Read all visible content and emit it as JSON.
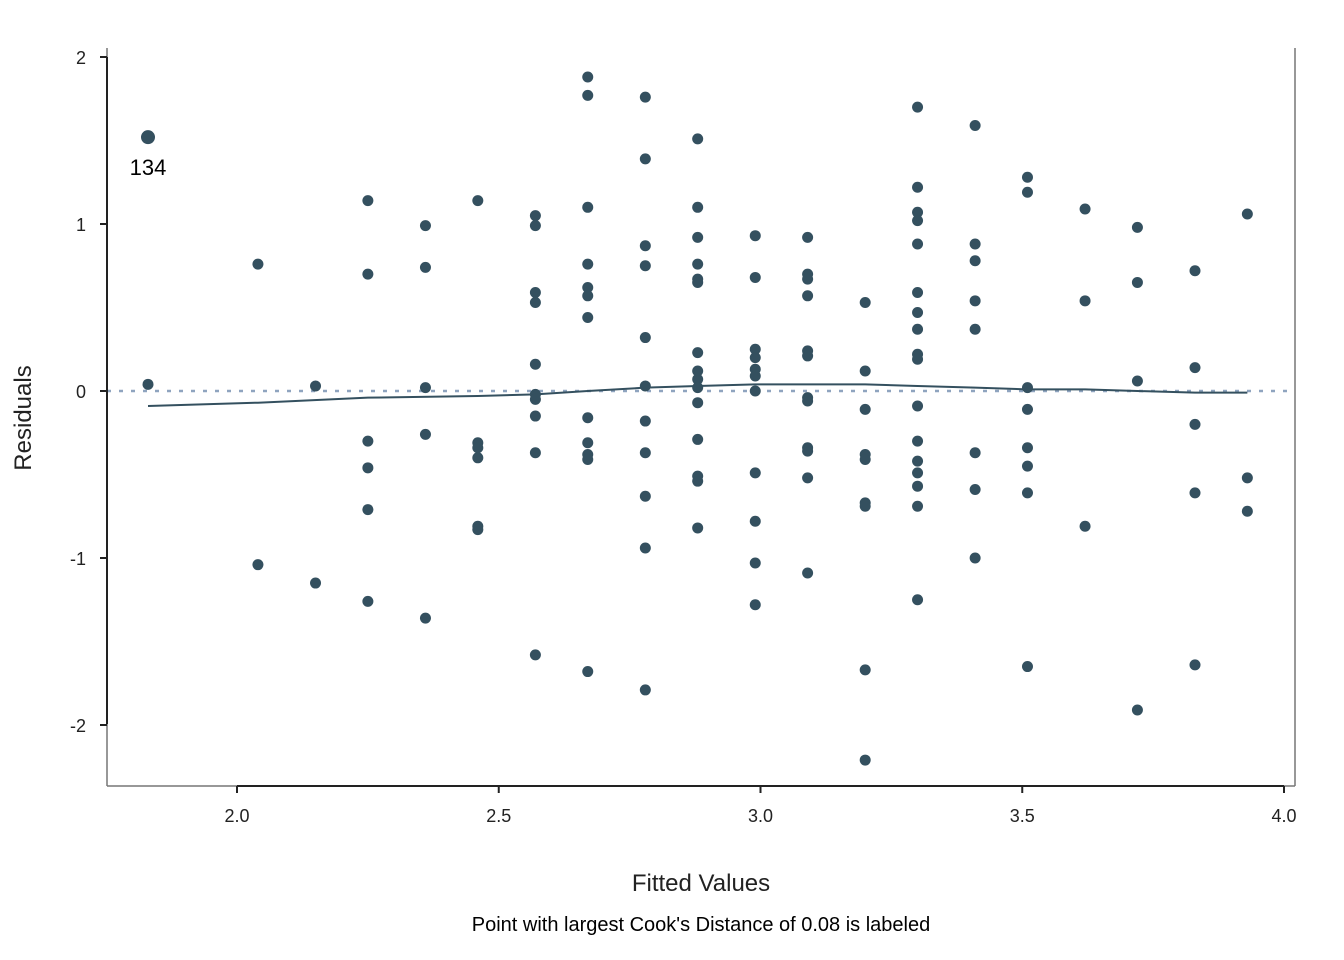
{
  "chart_data": {
    "type": "scatter",
    "title": "",
    "xlabel": "Fitted Values",
    "ylabel": "Residuals",
    "caption": "Point with largest Cook's Distance of 0.08 is labeled",
    "xlim": [
      1.75,
      4.02
    ],
    "ylim": [
      -2.38,
      2.05
    ],
    "xticks": [
      2.0,
      2.5,
      3.0,
      3.5,
      4.0
    ],
    "xtick_labels": [
      "2.0",
      "2.5",
      "3.0",
      "3.5",
      "4.0"
    ],
    "yticks": [
      2,
      1,
      0,
      -1,
      -2
    ],
    "ytick_labels": [
      "2",
      "1",
      "0",
      "-1",
      "-2"
    ],
    "grid": false,
    "legend": null,
    "colors": {
      "points": "#34505f",
      "smooth_line": "#34505f",
      "reference_line": "#8fa4bf",
      "axis": "#222222",
      "border": "#777777"
    },
    "labeled_point": {
      "label": "134",
      "x": 1.83,
      "y": 1.52
    },
    "reference_line_y": 0,
    "smooth_line": {
      "x": [
        1.83,
        2.04,
        2.25,
        2.46,
        2.57,
        2.67,
        2.78,
        2.88,
        2.99,
        3.09,
        3.2,
        3.3,
        3.41,
        3.51,
        3.62,
        3.72,
        3.83,
        3.93
      ],
      "y": [
        -0.09,
        -0.07,
        -0.04,
        -0.03,
        -0.02,
        0.0,
        0.02,
        0.03,
        0.04,
        0.04,
        0.04,
        0.03,
        0.02,
        0.01,
        0.01,
        0.0,
        -0.01,
        -0.01
      ]
    },
    "points": [
      {
        "x": 1.83,
        "y": 1.52
      },
      {
        "x": 1.83,
        "y": 0.04
      },
      {
        "x": 2.04,
        "y": 0.76
      },
      {
        "x": 2.04,
        "y": -1.04
      },
      {
        "x": 2.15,
        "y": 0.03
      },
      {
        "x": 2.15,
        "y": -1.15
      },
      {
        "x": 2.25,
        "y": 1.14
      },
      {
        "x": 2.25,
        "y": 0.7
      },
      {
        "x": 2.25,
        "y": -0.3
      },
      {
        "x": 2.25,
        "y": -0.46
      },
      {
        "x": 2.25,
        "y": -0.71
      },
      {
        "x": 2.25,
        "y": -1.26
      },
      {
        "x": 2.36,
        "y": 0.99
      },
      {
        "x": 2.36,
        "y": 0.74
      },
      {
        "x": 2.36,
        "y": 0.02
      },
      {
        "x": 2.36,
        "y": -0.26
      },
      {
        "x": 2.36,
        "y": -1.36
      },
      {
        "x": 2.46,
        "y": 1.14
      },
      {
        "x": 2.46,
        "y": -0.31
      },
      {
        "x": 2.46,
        "y": -0.34
      },
      {
        "x": 2.46,
        "y": -0.4
      },
      {
        "x": 2.46,
        "y": -0.81
      },
      {
        "x": 2.46,
        "y": -0.83
      },
      {
        "x": 2.57,
        "y": 1.05
      },
      {
        "x": 2.57,
        "y": 0.99
      },
      {
        "x": 2.57,
        "y": 0.59
      },
      {
        "x": 2.57,
        "y": 0.53
      },
      {
        "x": 2.57,
        "y": 0.16
      },
      {
        "x": 2.57,
        "y": -0.02
      },
      {
        "x": 2.57,
        "y": -0.05
      },
      {
        "x": 2.57,
        "y": -0.15
      },
      {
        "x": 2.57,
        "y": -0.37
      },
      {
        "x": 2.57,
        "y": -1.58
      },
      {
        "x": 2.67,
        "y": 1.88
      },
      {
        "x": 2.67,
        "y": 1.77
      },
      {
        "x": 2.67,
        "y": 1.1
      },
      {
        "x": 2.67,
        "y": 0.76
      },
      {
        "x": 2.67,
        "y": 0.62
      },
      {
        "x": 2.67,
        "y": 0.57
      },
      {
        "x": 2.67,
        "y": 0.44
      },
      {
        "x": 2.67,
        "y": -0.16
      },
      {
        "x": 2.67,
        "y": -0.31
      },
      {
        "x": 2.67,
        "y": -0.38
      },
      {
        "x": 2.67,
        "y": -0.41
      },
      {
        "x": 2.67,
        "y": -1.68
      },
      {
        "x": 2.78,
        "y": 1.76
      },
      {
        "x": 2.78,
        "y": 1.39
      },
      {
        "x": 2.78,
        "y": 0.87
      },
      {
        "x": 2.78,
        "y": 0.75
      },
      {
        "x": 2.78,
        "y": 0.32
      },
      {
        "x": 2.78,
        "y": 0.03
      },
      {
        "x": 2.78,
        "y": -0.18
      },
      {
        "x": 2.78,
        "y": -0.37
      },
      {
        "x": 2.78,
        "y": -0.63
      },
      {
        "x": 2.78,
        "y": -0.94
      },
      {
        "x": 2.78,
        "y": -1.79
      },
      {
        "x": 2.88,
        "y": 1.51
      },
      {
        "x": 2.88,
        "y": 1.1
      },
      {
        "x": 2.88,
        "y": 0.92
      },
      {
        "x": 2.88,
        "y": 0.76
      },
      {
        "x": 2.88,
        "y": 0.67
      },
      {
        "x": 2.88,
        "y": 0.65
      },
      {
        "x": 2.88,
        "y": 0.23
      },
      {
        "x": 2.88,
        "y": 0.12
      },
      {
        "x": 2.88,
        "y": 0.07
      },
      {
        "x": 2.88,
        "y": 0.02
      },
      {
        "x": 2.88,
        "y": -0.07
      },
      {
        "x": 2.88,
        "y": -0.29
      },
      {
        "x": 2.88,
        "y": -0.51
      },
      {
        "x": 2.88,
        "y": -0.54
      },
      {
        "x": 2.88,
        "y": -0.82
      },
      {
        "x": 2.99,
        "y": 0.93
      },
      {
        "x": 2.99,
        "y": 0.68
      },
      {
        "x": 2.99,
        "y": 0.25
      },
      {
        "x": 2.99,
        "y": 0.2
      },
      {
        "x": 2.99,
        "y": 0.13
      },
      {
        "x": 2.99,
        "y": 0.09
      },
      {
        "x": 2.99,
        "y": 0.0
      },
      {
        "x": 2.99,
        "y": -0.49
      },
      {
        "x": 2.99,
        "y": -0.78
      },
      {
        "x": 2.99,
        "y": -1.03
      },
      {
        "x": 2.99,
        "y": -1.28
      },
      {
        "x": 3.09,
        "y": 0.92
      },
      {
        "x": 3.09,
        "y": 0.7
      },
      {
        "x": 3.09,
        "y": 0.67
      },
      {
        "x": 3.09,
        "y": 0.57
      },
      {
        "x": 3.09,
        "y": 0.24
      },
      {
        "x": 3.09,
        "y": 0.21
      },
      {
        "x": 3.09,
        "y": -0.04
      },
      {
        "x": 3.09,
        "y": -0.06
      },
      {
        "x": 3.09,
        "y": -0.34
      },
      {
        "x": 3.09,
        "y": -0.36
      },
      {
        "x": 3.09,
        "y": -0.52
      },
      {
        "x": 3.09,
        "y": -1.09
      },
      {
        "x": 3.2,
        "y": 0.53
      },
      {
        "x": 3.2,
        "y": 0.12
      },
      {
        "x": 3.2,
        "y": -0.11
      },
      {
        "x": 3.2,
        "y": -0.38
      },
      {
        "x": 3.2,
        "y": -0.41
      },
      {
        "x": 3.2,
        "y": -0.67
      },
      {
        "x": 3.2,
        "y": -0.69
      },
      {
        "x": 3.2,
        "y": -1.67
      },
      {
        "x": 3.2,
        "y": -2.21
      },
      {
        "x": 3.3,
        "y": 1.7
      },
      {
        "x": 3.3,
        "y": 1.22
      },
      {
        "x": 3.3,
        "y": 1.07
      },
      {
        "x": 3.3,
        "y": 1.02
      },
      {
        "x": 3.3,
        "y": 0.88
      },
      {
        "x": 3.3,
        "y": 0.59
      },
      {
        "x": 3.3,
        "y": 0.47
      },
      {
        "x": 3.3,
        "y": 0.37
      },
      {
        "x": 3.3,
        "y": 0.22
      },
      {
        "x": 3.3,
        "y": 0.19
      },
      {
        "x": 3.3,
        "y": -0.09
      },
      {
        "x": 3.3,
        "y": -0.3
      },
      {
        "x": 3.3,
        "y": -0.42
      },
      {
        "x": 3.3,
        "y": -0.49
      },
      {
        "x": 3.3,
        "y": -0.57
      },
      {
        "x": 3.3,
        "y": -0.69
      },
      {
        "x": 3.3,
        "y": -1.25
      },
      {
        "x": 3.41,
        "y": 1.59
      },
      {
        "x": 3.41,
        "y": 0.88
      },
      {
        "x": 3.41,
        "y": 0.78
      },
      {
        "x": 3.41,
        "y": 0.54
      },
      {
        "x": 3.41,
        "y": 0.37
      },
      {
        "x": 3.41,
        "y": -0.37
      },
      {
        "x": 3.41,
        "y": -0.59
      },
      {
        "x": 3.41,
        "y": -1.0
      },
      {
        "x": 3.51,
        "y": 1.28
      },
      {
        "x": 3.51,
        "y": 1.19
      },
      {
        "x": 3.51,
        "y": 0.02
      },
      {
        "x": 3.51,
        "y": -0.11
      },
      {
        "x": 3.51,
        "y": -0.34
      },
      {
        "x": 3.51,
        "y": -0.45
      },
      {
        "x": 3.51,
        "y": -0.61
      },
      {
        "x": 3.51,
        "y": -1.65
      },
      {
        "x": 3.62,
        "y": 1.09
      },
      {
        "x": 3.62,
        "y": 0.54
      },
      {
        "x": 3.62,
        "y": -0.81
      },
      {
        "x": 3.72,
        "y": 0.98
      },
      {
        "x": 3.72,
        "y": 0.65
      },
      {
        "x": 3.72,
        "y": 0.06
      },
      {
        "x": 3.72,
        "y": -1.91
      },
      {
        "x": 3.83,
        "y": 0.72
      },
      {
        "x": 3.83,
        "y": 0.14
      },
      {
        "x": 3.83,
        "y": -0.2
      },
      {
        "x": 3.83,
        "y": -0.61
      },
      {
        "x": 3.83,
        "y": -1.64
      },
      {
        "x": 3.93,
        "y": 1.06
      },
      {
        "x": 3.93,
        "y": -0.52
      },
      {
        "x": 3.93,
        "y": -0.72
      }
    ]
  }
}
